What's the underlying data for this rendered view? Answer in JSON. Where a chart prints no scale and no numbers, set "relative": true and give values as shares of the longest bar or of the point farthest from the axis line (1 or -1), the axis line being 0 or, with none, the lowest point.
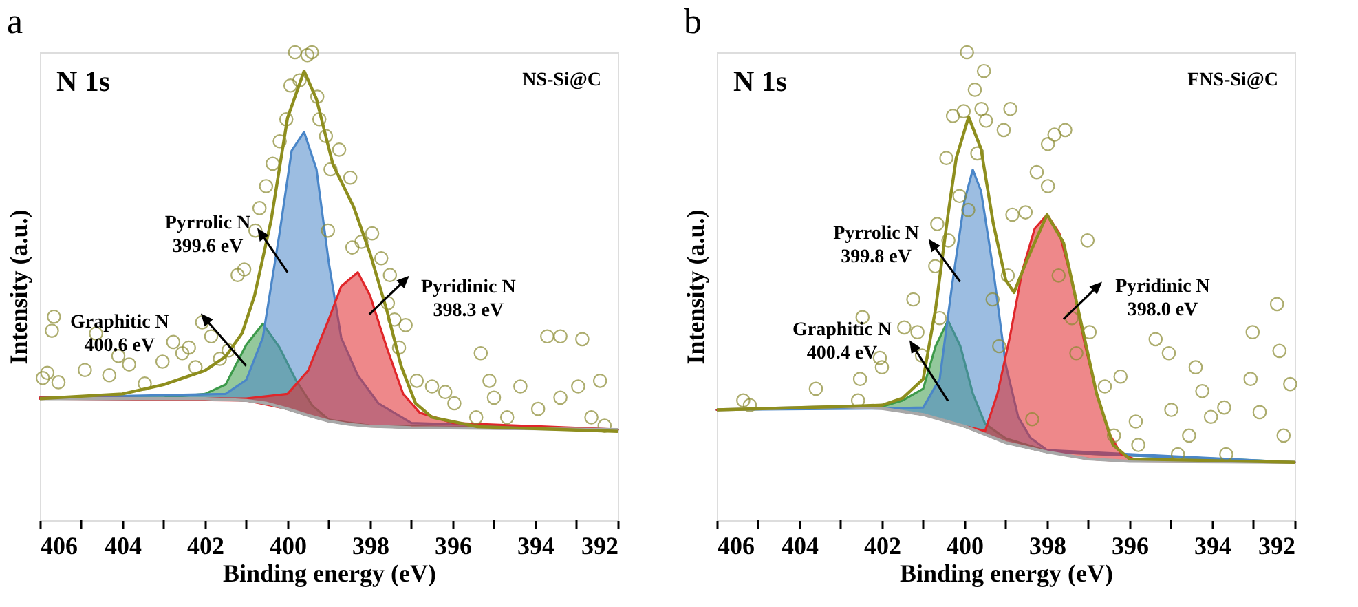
{
  "chart_data": [
    {
      "type": "line",
      "title": "a",
      "xlabel": "Binding energy (eV)",
      "ylabel": "Intensity (a.u.)",
      "relative": true,
      "tick_labels": "x",
      "xlim": [
        406,
        392
      ],
      "xticks": [
        406,
        {
          "value": 405,
          "label": null
        },
        404,
        {
          "value": 403,
          "label": null
        },
        402,
        {
          "value": 401,
          "label": null
        },
        400,
        {
          "value": 399,
          "label": null
        },
        398,
        {
          "value": 397,
          "label": null
        },
        396,
        {
          "value": 395,
          "label": null
        },
        394,
        {
          "value": 393,
          "label": null
        },
        392
      ],
      "annotations": [
        "N 1s",
        "NS-Si@C",
        "Graphitic N\n400.6 eV",
        "Pyrrolic N\n399.6 eV",
        "Pyridinic N\n398.3 eV"
      ],
      "series": [
        {
          "type": "area",
          "color": "#3c9a4a",
          "x": [
            406,
            403,
            402,
            401.5,
            401,
            400.6,
            400.2,
            399.8,
            399.4,
            399,
            398,
            392
          ],
          "values": [
            0.262,
            0.262,
            0.27,
            0.29,
            0.375,
            0.42,
            0.37,
            0.3,
            0.245,
            0.215,
            0.202,
            0.194
          ]
        },
        {
          "type": "area",
          "color": "#4a86c8",
          "x": [
            406,
            401.5,
            401,
            400.6,
            400.2,
            399.9,
            399.6,
            399.3,
            399,
            398.7,
            398.3,
            397.8,
            397,
            392
          ],
          "values": [
            0.262,
            0.27,
            0.3,
            0.39,
            0.61,
            0.79,
            0.83,
            0.75,
            0.55,
            0.39,
            0.31,
            0.25,
            0.208,
            0.194
          ]
        },
        {
          "type": "area",
          "color": "#e0262a",
          "x": [
            406,
            401,
            400,
            399.5,
            399,
            398.7,
            398.3,
            398,
            397.6,
            397.2,
            396.8,
            396,
            392
          ],
          "values": [
            0.262,
            0.26,
            0.27,
            0.32,
            0.43,
            0.5,
            0.53,
            0.48,
            0.37,
            0.27,
            0.23,
            0.208,
            0.194
          ]
        },
        {
          "type": "scatter",
          "marker": "circle",
          "color": "#8a8a30",
          "x": [
            405.93,
            405.82,
            405.71,
            405.66,
            405.55,
            404.91,
            404.64,
            404.32,
            404.1,
            403.84,
            403.46,
            403.03,
            402.77,
            402.55,
            402.39,
            402.23,
            402.07,
            401.85,
            401.64,
            401.43,
            401.21,
            401.05,
            400.78,
            400.68,
            400.52,
            400.36,
            400.19,
            400.03,
            399.93,
            399.82,
            399.71,
            399.52,
            399.41,
            399.28,
            399.23,
            399.07,
            399.02,
            398.96,
            398.75,
            398.48,
            398.43,
            398.21,
            397.95,
            397.73,
            397.57,
            397.52,
            397.41,
            397.3,
            397.14,
            396.87,
            396.5,
            396.18,
            395.96,
            395.43,
            395.32,
            395.11,
            395.0,
            394.68,
            394.36,
            393.93,
            393.71,
            393.39,
            393.39,
            392.96,
            392.86,
            392.64,
            392.43,
            392.32
          ],
          "values": [
            0.304,
            0.315,
            0.405,
            0.435,
            0.295,
            0.321,
            0.399,
            0.31,
            0.351,
            0.333,
            0.292,
            0.339,
            0.381,
            0.357,
            0.369,
            0.327,
            0.423,
            0.393,
            0.345,
            0.363,
            0.524,
            0.536,
            0.619,
            0.667,
            0.714,
            0.762,
            0.81,
            0.857,
            0.929,
            1.0,
            0.94,
            0.994,
            1.0,
            0.905,
            0.857,
            0.821,
            0.619,
            0.75,
            0.792,
            0.732,
            0.583,
            0.595,
            0.613,
            0.56,
            0.464,
            0.524,
            0.429,
            0.369,
            0.417,
            0.298,
            0.286,
            0.274,
            0.25,
            0.22,
            0.357,
            0.298,
            0.262,
            0.22,
            0.286,
            0.238,
            0.393,
            0.393,
            0.262,
            0.286,
            0.387,
            0.22,
            0.298,
            0.202
          ]
        },
        {
          "color": "#a8a8a8",
          "x": [
            406,
            402,
            401,
            400.5,
            400,
            399.5,
            399,
            398.5,
            398,
            397,
            392
          ],
          "values": [
            0.26,
            0.26,
            0.256,
            0.25,
            0.238,
            0.224,
            0.212,
            0.205,
            0.201,
            0.198,
            0.194
          ]
        },
        {
          "color": "#8e8e1e",
          "x": [
            406,
            404,
            403,
            402,
            401.5,
            401.1,
            400.8,
            400.4,
            400,
            399.6,
            399.3,
            398.9,
            398.4,
            398,
            397.6,
            397.25,
            396.9,
            396.5,
            395.4,
            392
          ],
          "values": [
            0.26,
            0.27,
            0.29,
            0.32,
            0.35,
            0.4,
            0.48,
            0.64,
            0.86,
            0.96,
            0.9,
            0.76,
            0.67,
            0.57,
            0.45,
            0.33,
            0.25,
            0.22,
            0.2,
            0.19
          ]
        }
      ]
    },
    {
      "type": "line",
      "title": "b",
      "xlabel": "Binding energy (eV)",
      "ylabel": "Intensity (a.u.)",
      "relative": true,
      "tick_labels": "x",
      "xlim": [
        406,
        392
      ],
      "xticks": [
        406,
        {
          "value": 405,
          "label": null
        },
        404,
        {
          "value": 403,
          "label": null
        },
        402,
        {
          "value": 401,
          "label": null
        },
        400,
        {
          "value": 399,
          "label": null
        },
        398,
        {
          "value": 397,
          "label": null
        },
        396,
        {
          "value": 395,
          "label": null
        },
        394,
        {
          "value": 393,
          "label": null
        },
        392
      ],
      "annotations": [
        "N 1s",
        "FNS-Si@C",
        "Graphitic N\n400.4 eV",
        "Pyrrolic N\n399.8 eV",
        "Pyridinic N\n398.0 eV"
      ],
      "series": [
        {
          "type": "area",
          "color": "#3c9a4a",
          "x": [
            406,
            403,
            402,
            401.5,
            401,
            400.7,
            400.4,
            400.1,
            399.8,
            399.5,
            399,
            398,
            392
          ],
          "values": [
            0.236,
            0.243,
            0.243,
            0.256,
            0.281,
            0.372,
            0.427,
            0.372,
            0.271,
            0.206,
            0.175,
            0.148,
            0.124
          ]
        },
        {
          "type": "area",
          "color": "#4a86c8",
          "x": [
            406,
            402,
            401,
            400.6,
            400.3,
            400,
            399.8,
            399.6,
            399.3,
            399,
            398.7,
            398.4,
            398,
            392
          ],
          "values": [
            0.236,
            0.239,
            0.241,
            0.302,
            0.503,
            0.683,
            0.749,
            0.704,
            0.533,
            0.332,
            0.221,
            0.176,
            0.15,
            0.124
          ]
        },
        {
          "type": "area",
          "color": "#e0262a",
          "x": [
            406,
            403,
            402,
            401,
            400,
            399.5,
            399.2,
            398.9,
            398.6,
            398.3,
            398,
            397.7,
            397.4,
            397.1,
            396.8,
            396.5,
            396.2,
            395.8,
            392
          ],
          "values": [
            0.236,
            0.243,
            0.239,
            0.226,
            0.201,
            0.191,
            0.271,
            0.392,
            0.533,
            0.623,
            0.653,
            0.613,
            0.513,
            0.382,
            0.271,
            0.186,
            0.141,
            0.128,
            0.124
          ]
        },
        {
          "type": "scatter",
          "marker": "circle",
          "color": "#8a8a30",
          "x": [
            405.36,
            405.2,
            403.6,
            402.58,
            402.53,
            402.47,
            402.05,
            402.0,
            401.46,
            401.24,
            401.14,
            401.03,
            400.71,
            400.66,
            400.6,
            400.44,
            400.39,
            400.28,
            400.12,
            400.02,
            399.94,
            399.91,
            399.75,
            399.69,
            399.59,
            399.53,
            399.48,
            399.32,
            399.16,
            399.05,
            398.95,
            398.89,
            398.84,
            398.52,
            398.36,
            398.25,
            397.98,
            397.98,
            397.82,
            397.72,
            397.56,
            397.4,
            397.29,
            397.02,
            396.97,
            396.6,
            396.38,
            396.22,
            395.85,
            395.79,
            395.37,
            395.05,
            394.99,
            394.83,
            394.56,
            394.4,
            394.24,
            394.03,
            393.71,
            393.66,
            393.07,
            393.02,
            392.85,
            392.43,
            392.37,
            392.27,
            392.11
          ],
          "values": [
            0.256,
            0.246,
            0.281,
            0.256,
            0.302,
            0.434,
            0.347,
            0.327,
            0.412,
            0.472,
            0.402,
            0.352,
            0.543,
            0.633,
            0.432,
            0.774,
            0.598,
            0.864,
            0.693,
            0.874,
            1.0,
            0.663,
            0.92,
            0.784,
            0.879,
            0.96,
            0.854,
            0.472,
            0.372,
            0.834,
            0.523,
            0.879,
            0.653,
            0.658,
            0.216,
            0.744,
            0.804,
            0.714,
            0.824,
            0.523,
            0.834,
            0.432,
            0.357,
            0.598,
            0.402,
            0.286,
            0.181,
            0.307,
            0.211,
            0.161,
            0.387,
            0.357,
            0.236,
            0.141,
            0.181,
            0.327,
            0.276,
            0.221,
            0.241,
            0.141,
            0.302,
            0.402,
            0.231,
            0.462,
            0.362,
            0.181,
            0.291
          ]
        },
        {
          "color": "#a8a8a8",
          "x": [
            406,
            403,
            402,
            401,
            400,
            399,
            398,
            397,
            396,
            392
          ],
          "values": [
            0.236,
            0.243,
            0.239,
            0.226,
            0.201,
            0.166,
            0.146,
            0.131,
            0.126,
            0.124
          ]
        },
        {
          "color": "#8e8e1e",
          "x": [
            406,
            403,
            402,
            401.5,
            401,
            400.7,
            400.4,
            400.2,
            399.9,
            399.6,
            399.3,
            399,
            398.8,
            398.5,
            398,
            397.6,
            397.2,
            396.8,
            396.4,
            396,
            392
          ],
          "values": [
            0.236,
            0.243,
            0.246,
            0.261,
            0.302,
            0.452,
            0.653,
            0.774,
            0.862,
            0.794,
            0.633,
            0.513,
            0.487,
            0.553,
            0.653,
            0.593,
            0.432,
            0.271,
            0.161,
            0.131,
            0.124
          ]
        }
      ]
    }
  ]
}
